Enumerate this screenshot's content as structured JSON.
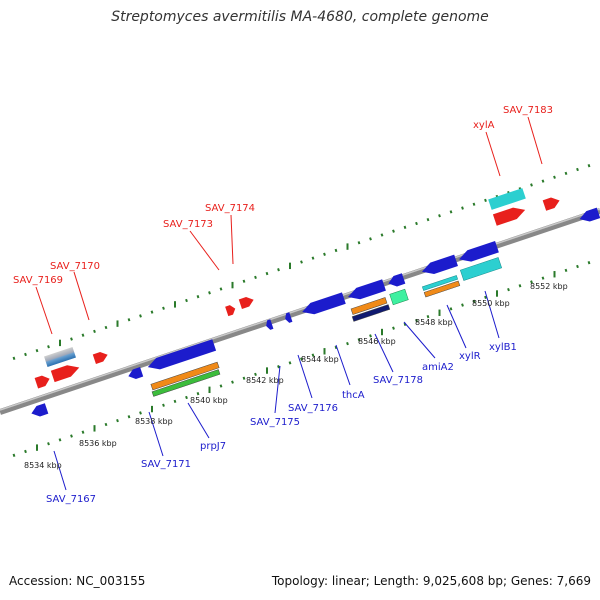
{
  "title": "Streptomyces avermitilis MA-4680, complete genome",
  "footer": {
    "accession": "Accession: NC_003155",
    "stats": "Topology: linear; Length: 9,025,608 bp; Genes: 7,669"
  },
  "colors": {
    "forward": "#e8201c",
    "reverse": "#1c1ccc",
    "cyan": "#2ccfd0",
    "orange": "#f08a18",
    "green": "#3cbc3c",
    "backbone": "#888888",
    "tick": "#2a7a2a"
  },
  "kbp_labels": [
    "8534 kbp",
    "8536 kbp",
    "8538 kbp",
    "8540 kbp",
    "8542 kbp",
    "8544 kbp",
    "8546 kbp",
    "8548 kbp",
    "8550 kbp",
    "8552 kbp"
  ],
  "gene_labels_top": [
    "SAV_7169",
    "SAV_7170",
    "SAV_7173",
    "SAV_7174",
    "xylA",
    "SAV_7183"
  ],
  "gene_labels_bottom": [
    "SAV_7167",
    "SAV_7171",
    "prpJ7",
    "SAV_7175",
    "SAV_7176",
    "thcA",
    "SAV_7178",
    "amiA2",
    "xylR",
    "xylB1"
  ]
}
